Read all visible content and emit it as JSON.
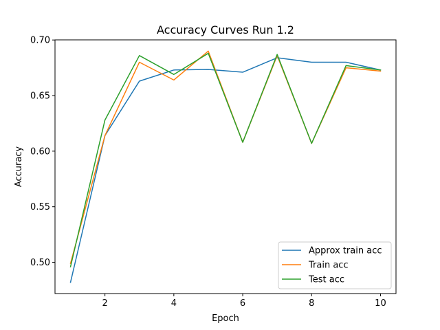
{
  "chart_data": {
    "type": "line",
    "title": "Accuracy Curves Run 1.2",
    "xlabel": "Epoch",
    "ylabel": "Accuracy",
    "x": [
      1,
      2,
      3,
      4,
      5,
      6,
      7,
      8,
      9,
      10
    ],
    "xlim": [
      0.55,
      10.45
    ],
    "ylim": [
      0.4719,
      0.7001
    ],
    "xticks": [
      2,
      4,
      6,
      8,
      10
    ],
    "xtick_labels": [
      "2",
      "4",
      "6",
      "8",
      "10"
    ],
    "yticks": [
      0.5,
      0.55,
      0.6,
      0.65,
      0.7
    ],
    "ytick_labels": [
      "0.50",
      "0.55",
      "0.60",
      "0.65",
      "0.70"
    ],
    "grid": false,
    "legend_position": "lower-right",
    "series": [
      {
        "name": "Approx train acc",
        "color": "#1f77b4",
        "values": [
          0.482,
          0.614,
          0.663,
          0.673,
          0.6735,
          0.671,
          0.684,
          0.68,
          0.68,
          0.673
        ]
      },
      {
        "name": "Train acc",
        "color": "#ff7f0e",
        "values": [
          0.499,
          0.614,
          0.68,
          0.664,
          0.69,
          0.608,
          0.686,
          0.607,
          0.675,
          0.672
        ]
      },
      {
        "name": "Test acc",
        "color": "#2ca02c",
        "values": [
          0.496,
          0.628,
          0.686,
          0.669,
          0.688,
          0.608,
          0.687,
          0.607,
          0.677,
          0.673
        ]
      }
    ]
  }
}
